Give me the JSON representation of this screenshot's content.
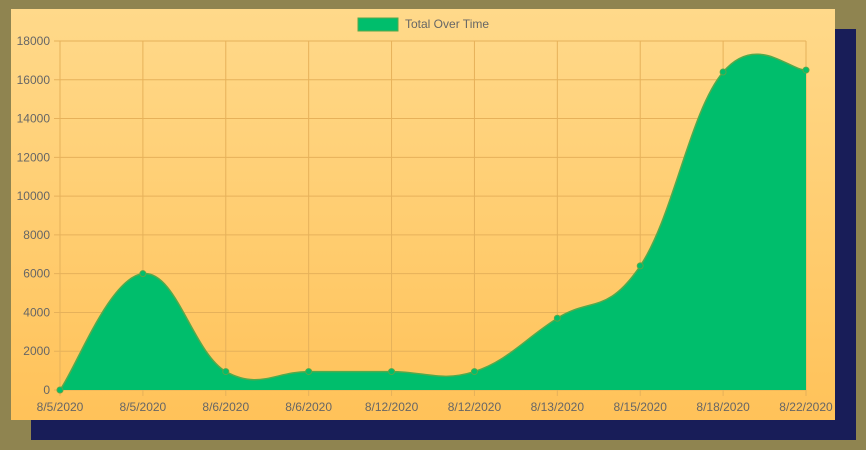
{
  "colors": {
    "page_background": "#8f8450",
    "shadow_panel": "#181d58",
    "card_gradient_top": "#ffd98a",
    "card_gradient_bottom": "#ffc259",
    "series_fill": "#00be6c",
    "series_stroke": "#56a84a",
    "grid": "#e6b15a"
  },
  "chart_data": {
    "type": "area",
    "title": "",
    "xlabel": "",
    "ylabel": "",
    "legend": {
      "position": "top",
      "entries": [
        "Total Over Time"
      ]
    },
    "grid": true,
    "ylim": [
      0,
      18000
    ],
    "y_ticks": [
      0,
      2000,
      4000,
      6000,
      8000,
      10000,
      12000,
      14000,
      16000,
      18000
    ],
    "categories": [
      "8/5/2020",
      "8/5/2020",
      "8/6/2020",
      "8/6/2020",
      "8/12/2020",
      "8/12/2020",
      "8/13/2020",
      "8/15/2020",
      "8/18/2020",
      "8/22/2020"
    ],
    "series": [
      {
        "name": "Total Over Time",
        "values": [
          0,
          6000,
          950,
          950,
          950,
          950,
          3700,
          6400,
          16400,
          16500
        ]
      }
    ]
  }
}
